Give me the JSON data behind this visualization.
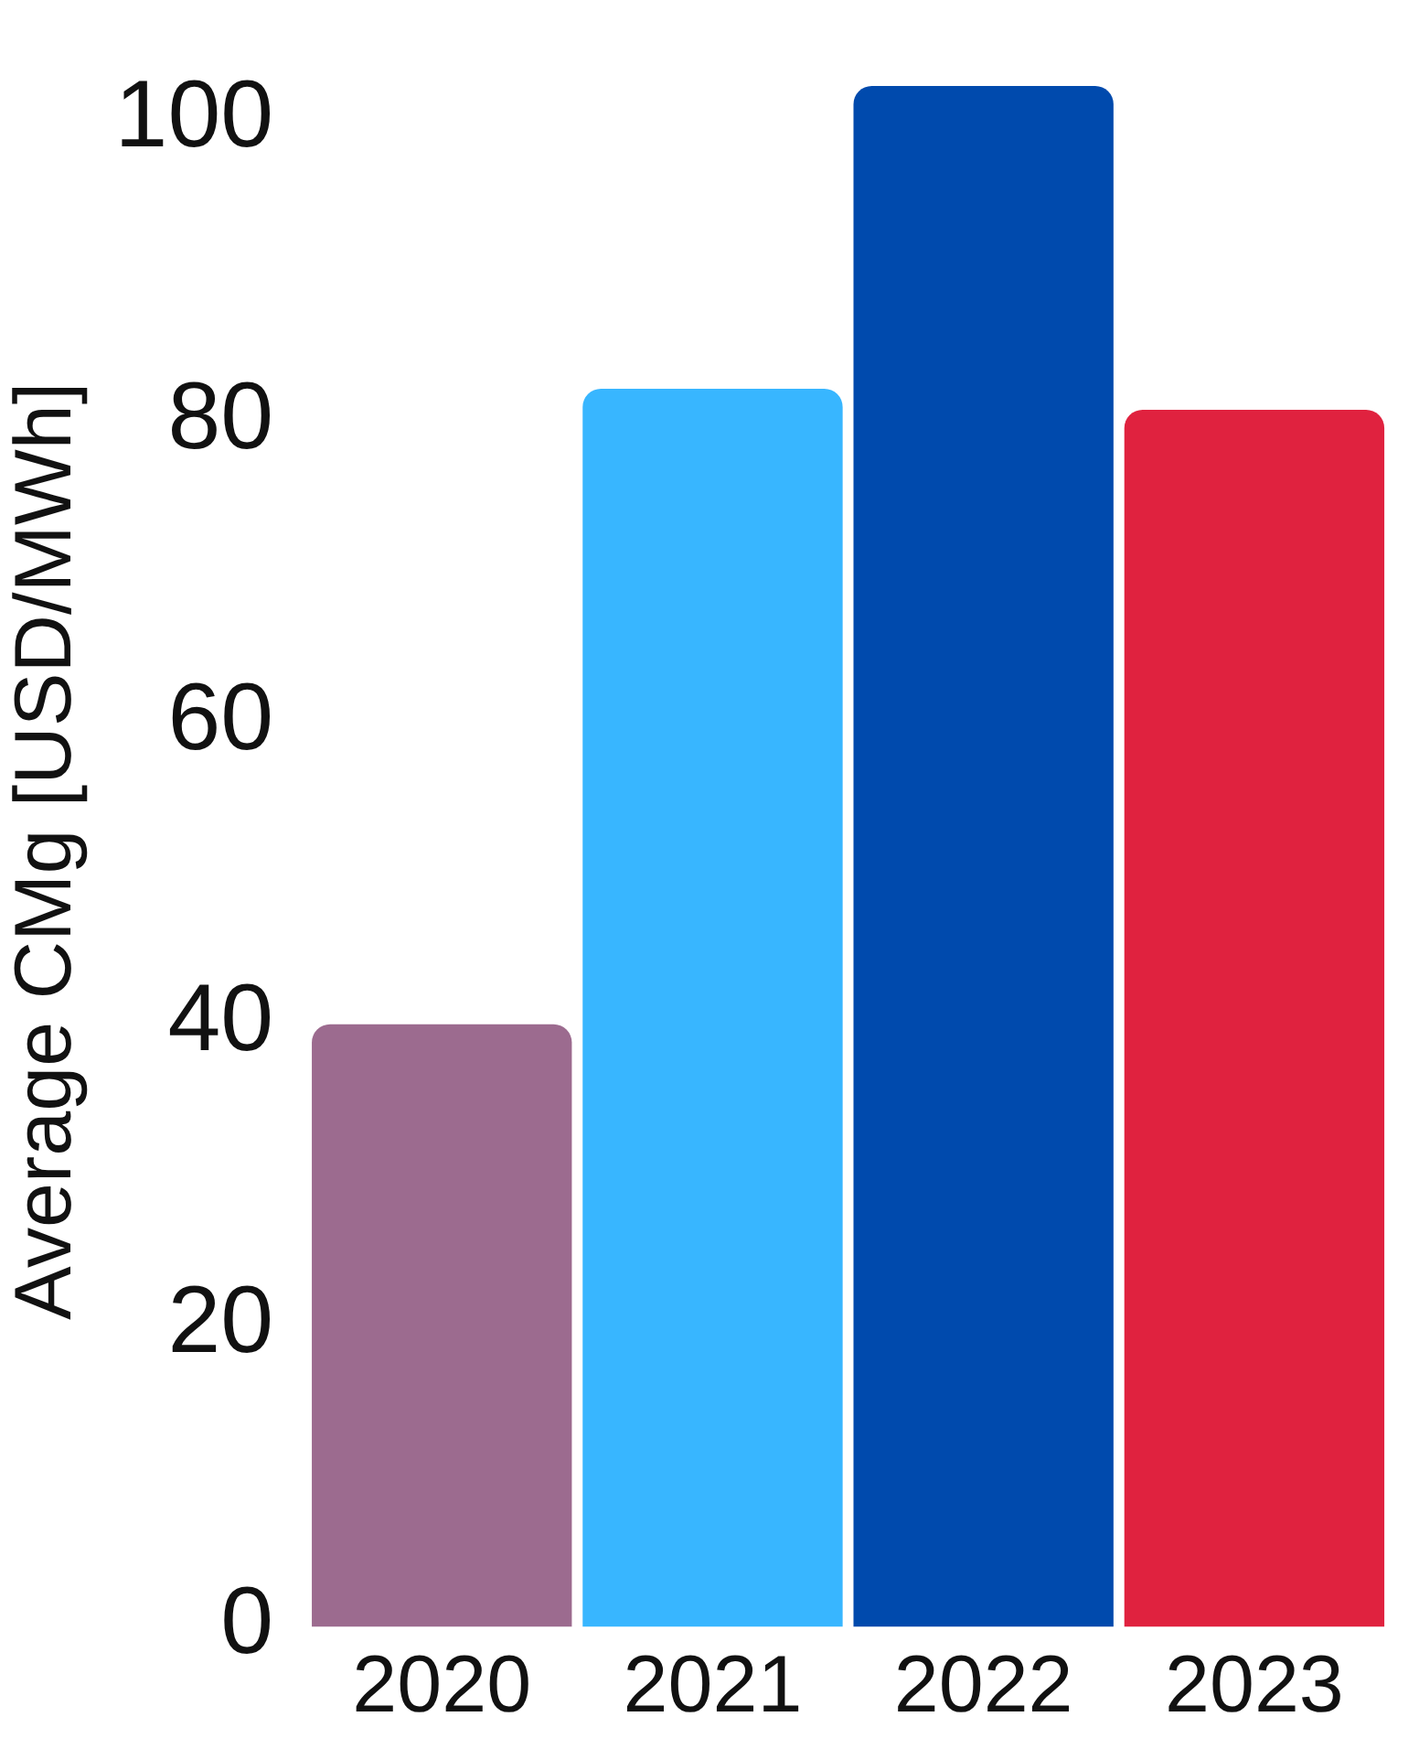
{
  "chart_data": {
    "type": "bar",
    "ylabel": "Average CMg [USD/MWh]",
    "categories": [
      "2020",
      "2021",
      "2022",
      "2023"
    ],
    "values": [
      40,
      82.2,
      102.3,
      80.8
    ],
    "colors": [
      "#9c6b8f",
      "#38b6ff",
      "#004aad",
      "#e0223f"
    ],
    "ylim": [
      0,
      103
    ],
    "yticks": [
      0,
      20,
      40,
      60,
      80,
      100
    ],
    "grid": false,
    "legend": false
  }
}
